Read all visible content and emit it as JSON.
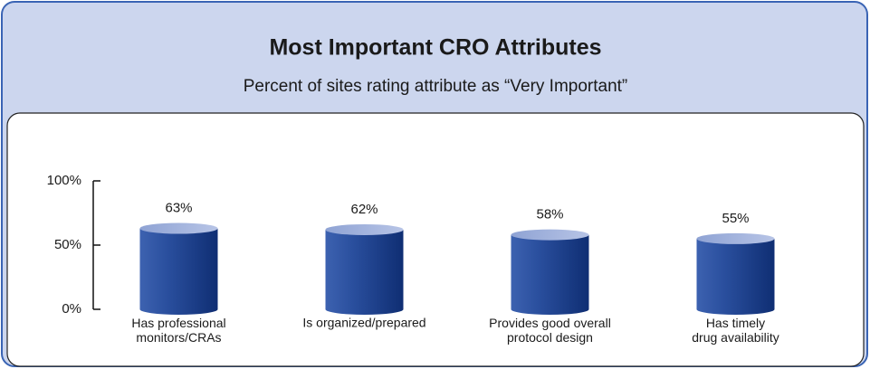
{
  "chart_data": {
    "type": "bar",
    "title": "Most Important CRO Attributes",
    "subtitle": "Percent of sites rating attribute as “Very Important”",
    "categories": [
      "Has professional\nmonitors/CRAs",
      "Is organized/prepared",
      "Provides good overall\nprotocol design",
      "Has timely\ndrug availability"
    ],
    "values": [
      63,
      62,
      58,
      55
    ],
    "value_labels": [
      "63%",
      "62%",
      "58%",
      "55%"
    ],
    "color": "#2a4f9e",
    "ylim": [
      0,
      100
    ],
    "yticks": [
      {
        "value": 0,
        "label": "0%"
      },
      {
        "value": 50,
        "label": "50%"
      },
      {
        "value": 100,
        "label": "100%"
      }
    ]
  }
}
